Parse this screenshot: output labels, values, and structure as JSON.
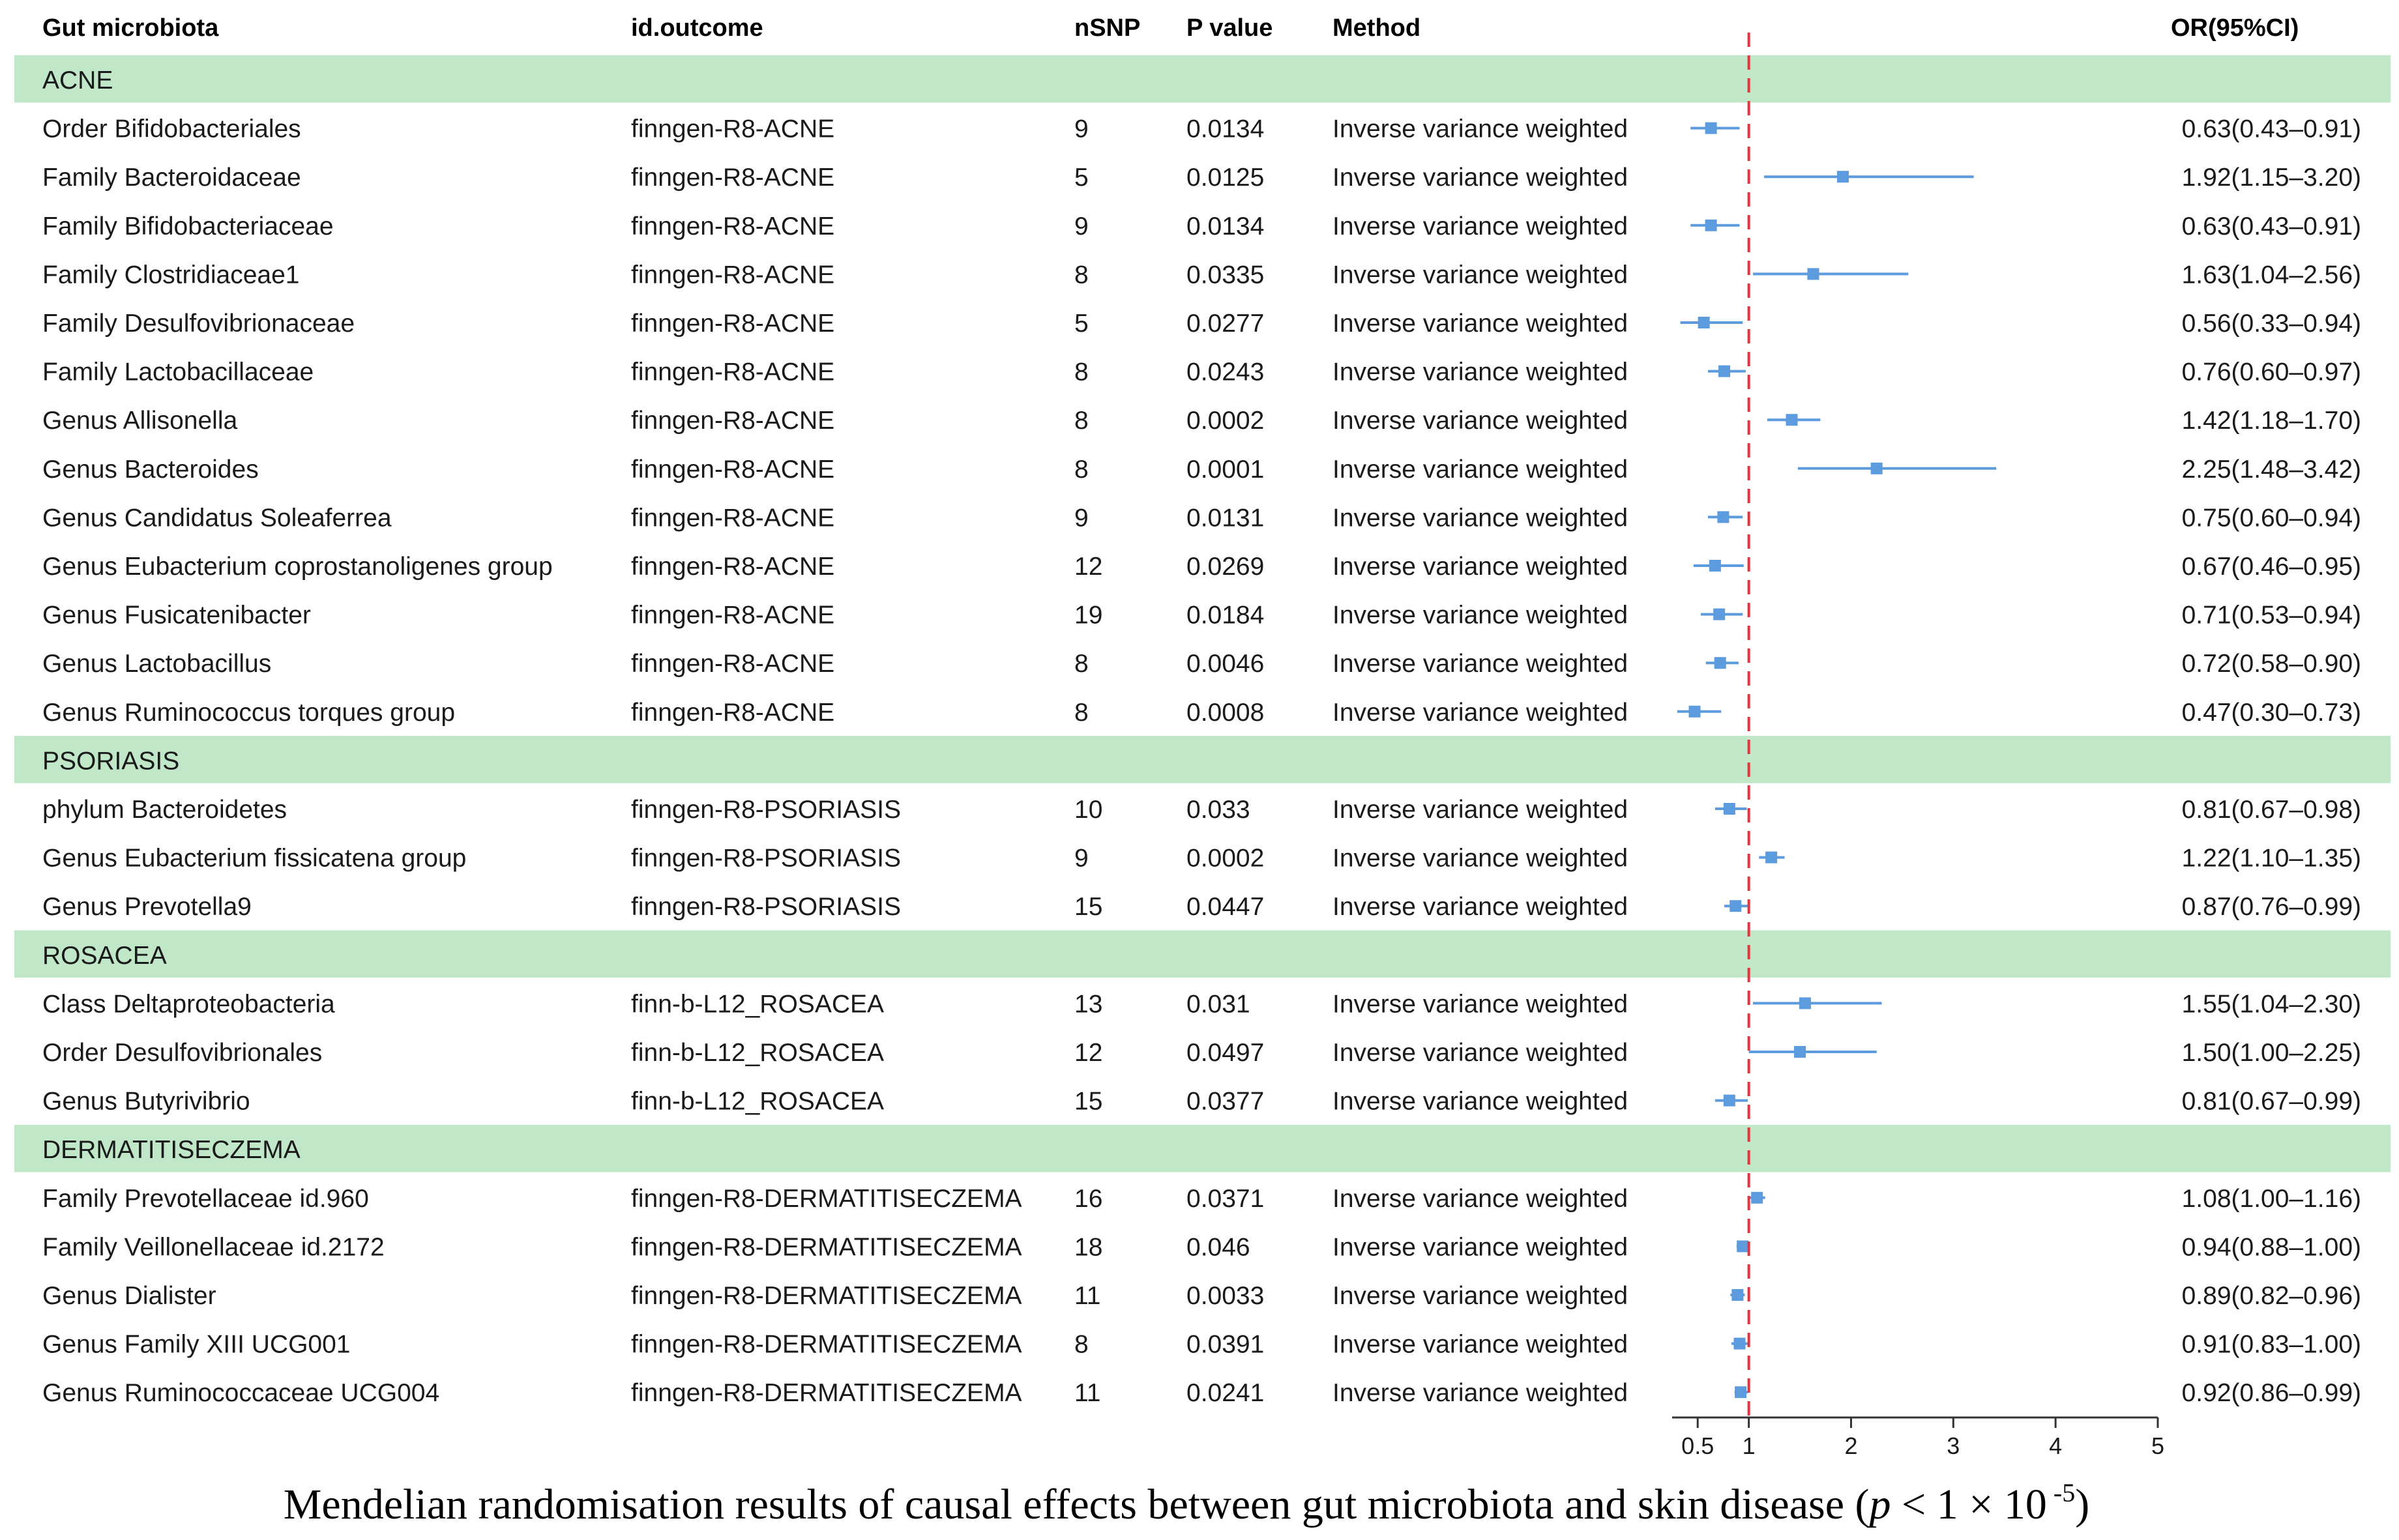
{
  "headers": {
    "gut": "Gut microbiota",
    "outcome": "id.outcome",
    "nsnp": "nSNP",
    "p": "P value",
    "method": "Method",
    "or": "OR(95%CI)"
  },
  "colors": {
    "group_band": "#c0e8c8",
    "point": "#5b9bde",
    "ref_line": "#e8323c"
  },
  "chart_data": {
    "type": "forest",
    "reference_value": 1,
    "axis_ticks": [
      0.5,
      1,
      2,
      3,
      4,
      5
    ],
    "axis_range": [
      0.25,
      5
    ],
    "groups": [
      {
        "name": "ACNE",
        "rows": [
          {
            "gut": "Order Bifidobacteriales",
            "outcome": "finngen-R8-ACNE",
            "nsnp": "9",
            "p": "0.0134",
            "method": "Inverse variance weighted",
            "or": 0.63,
            "lo": 0.43,
            "hi": 0.91,
            "or_text": "0.63(0.43–0.91)"
          },
          {
            "gut": "Family Bacteroidaceae",
            "outcome": "finngen-R8-ACNE",
            "nsnp": "5",
            "p": "0.0125",
            "method": "Inverse variance weighted",
            "or": 1.92,
            "lo": 1.15,
            "hi": 3.2,
            "or_text": "1.92(1.15–3.20)"
          },
          {
            "gut": "Family Bifidobacteriaceae",
            "outcome": "finngen-R8-ACNE",
            "nsnp": "9",
            "p": "0.0134",
            "method": "Inverse variance weighted",
            "or": 0.63,
            "lo": 0.43,
            "hi": 0.91,
            "or_text": "0.63(0.43–0.91)"
          },
          {
            "gut": "Family Clostridiaceae1",
            "outcome": "finngen-R8-ACNE",
            "nsnp": "8",
            "p": "0.0335",
            "method": "Inverse variance weighted",
            "or": 1.63,
            "lo": 1.04,
            "hi": 2.56,
            "or_text": "1.63(1.04–2.56)"
          },
          {
            "gut": "Family Desulfovibrionaceae",
            "outcome": "finngen-R8-ACNE",
            "nsnp": "5",
            "p": "0.0277",
            "method": "Inverse variance weighted",
            "or": 0.56,
            "lo": 0.33,
            "hi": 0.94,
            "or_text": "0.56(0.33–0.94)"
          },
          {
            "gut": "Family Lactobacillaceae",
            "outcome": "finngen-R8-ACNE",
            "nsnp": "8",
            "p": "0.0243",
            "method": "Inverse variance weighted",
            "or": 0.76,
            "lo": 0.6,
            "hi": 0.97,
            "or_text": "0.76(0.60–0.97)"
          },
          {
            "gut": "Genus Allisonella",
            "outcome": "finngen-R8-ACNE",
            "nsnp": "8",
            "p": "0.0002",
            "method": "Inverse variance weighted",
            "or": 1.42,
            "lo": 1.18,
            "hi": 1.7,
            "or_text": "1.42(1.18–1.70)"
          },
          {
            "gut": "Genus Bacteroides",
            "outcome": "finngen-R8-ACNE",
            "nsnp": "8",
            "p": "0.0001",
            "method": "Inverse variance weighted",
            "or": 2.25,
            "lo": 1.48,
            "hi": 3.42,
            "or_text": "2.25(1.48–3.42)"
          },
          {
            "gut": "Genus Candidatus Soleaferrea",
            "outcome": "finngen-R8-ACNE",
            "nsnp": "9",
            "p": "0.0131",
            "method": "Inverse variance weighted",
            "or": 0.75,
            "lo": 0.6,
            "hi": 0.94,
            "or_text": "0.75(0.60–0.94)"
          },
          {
            "gut": "Genus Eubacterium coprostanoligenes group",
            "outcome": "finngen-R8-ACNE",
            "nsnp": "12",
            "p": "0.0269",
            "method": "Inverse variance weighted",
            "or": 0.67,
            "lo": 0.46,
            "hi": 0.95,
            "or_text": "0.67(0.46–0.95)"
          },
          {
            "gut": "Genus Fusicatenibacter",
            "outcome": "finngen-R8-ACNE",
            "nsnp": "19",
            "p": "0.0184",
            "method": "Inverse variance weighted",
            "or": 0.71,
            "lo": 0.53,
            "hi": 0.94,
            "or_text": "0.71(0.53–0.94)"
          },
          {
            "gut": "Genus Lactobacillus",
            "outcome": "finngen-R8-ACNE",
            "nsnp": "8",
            "p": "0.0046",
            "method": "Inverse variance weighted",
            "or": 0.72,
            "lo": 0.58,
            "hi": 0.9,
            "or_text": "0.72(0.58–0.90)"
          },
          {
            "gut": "Genus Ruminococcus torques group",
            "outcome": "finngen-R8-ACNE",
            "nsnp": "8",
            "p": "0.0008",
            "method": "Inverse variance weighted",
            "or": 0.47,
            "lo": 0.3,
            "hi": 0.73,
            "or_text": "0.47(0.30–0.73)"
          }
        ]
      },
      {
        "name": "PSORIASIS",
        "rows": [
          {
            "gut": "phylum Bacteroidetes",
            "outcome": "finngen-R8-PSORIASIS",
            "nsnp": "10",
            "p": "0.033",
            "method": "Inverse variance weighted",
            "or": 0.81,
            "lo": 0.67,
            "hi": 0.98,
            "or_text": "0.81(0.67–0.98)"
          },
          {
            "gut": "Genus Eubacterium fissicatena group",
            "outcome": "finngen-R8-PSORIASIS",
            "nsnp": "9",
            "p": "0.0002",
            "method": "Inverse variance weighted",
            "or": 1.22,
            "lo": 1.1,
            "hi": 1.35,
            "or_text": "1.22(1.10–1.35)"
          },
          {
            "gut": "Genus Prevotella9",
            "outcome": "finngen-R8-PSORIASIS",
            "nsnp": "15",
            "p": "0.0447",
            "method": "Inverse variance weighted",
            "or": 0.87,
            "lo": 0.76,
            "hi": 0.99,
            "or_text": "0.87(0.76–0.99)"
          }
        ]
      },
      {
        "name": "ROSACEA",
        "rows": [
          {
            "gut": "Class Deltaproteobacteria",
            "outcome": "finn-b-L12_ROSACEA",
            "nsnp": "13",
            "p": "0.031",
            "method": "Inverse variance weighted",
            "or": 1.55,
            "lo": 1.04,
            "hi": 2.3,
            "or_text": "1.55(1.04–2.30)"
          },
          {
            "gut": "Order Desulfovibrionales",
            "outcome": "finn-b-L12_ROSACEA",
            "nsnp": "12",
            "p": "0.0497",
            "method": "Inverse variance weighted",
            "or": 1.5,
            "lo": 1.0,
            "hi": 2.25,
            "or_text": "1.50(1.00–2.25)"
          },
          {
            "gut": "Genus Butyrivibrio",
            "outcome": "finn-b-L12_ROSACEA",
            "nsnp": "15",
            "p": "0.0377",
            "method": "Inverse variance weighted",
            "or": 0.81,
            "lo": 0.67,
            "hi": 0.99,
            "or_text": "0.81(0.67–0.99)"
          }
        ]
      },
      {
        "name": "DERMATITISECZEMA",
        "rows": [
          {
            "gut": "Family Prevotellaceae id.960",
            "outcome": "finngen-R8-DERMATITISECZEMA",
            "nsnp": "16",
            "p": "0.0371",
            "method": "Inverse variance weighted",
            "or": 1.08,
            "lo": 1.0,
            "hi": 1.16,
            "or_text": "1.08(1.00–1.16)"
          },
          {
            "gut": "Family Veillonellaceae id.2172",
            "outcome": "finngen-R8-DERMATITISECZEMA",
            "nsnp": "18",
            "p": "0.046",
            "method": "Inverse variance weighted",
            "or": 0.94,
            "lo": 0.88,
            "hi": 1.0,
            "or_text": "0.94(0.88–1.00)"
          },
          {
            "gut": "Genus Dialister",
            "outcome": "finngen-R8-DERMATITISECZEMA",
            "nsnp": "11",
            "p": "0.0033",
            "method": "Inverse variance weighted",
            "or": 0.89,
            "lo": 0.82,
            "hi": 0.96,
            "or_text": "0.89(0.82–0.96)"
          },
          {
            "gut": "Genus Family XIII UCG001",
            "outcome": "finngen-R8-DERMATITISECZEMA",
            "nsnp": "8",
            "p": "0.0391",
            "method": "Inverse variance weighted",
            "or": 0.91,
            "lo": 0.83,
            "hi": 1.0,
            "or_text": "0.91(0.83–1.00)"
          },
          {
            "gut": "Genus Ruminococcaceae UCG004",
            "outcome": "finngen-R8-DERMATITISECZEMA",
            "nsnp": "11",
            "p": "0.0241",
            "method": "Inverse variance weighted",
            "or": 0.92,
            "lo": 0.86,
            "hi": 0.99,
            "or_text": "0.92(0.86–0.99)"
          }
        ]
      }
    ]
  },
  "caption": {
    "main": "Mendelian randomisation results of causal effects between gut microbiota and skin disease (",
    "p_symbol": "p",
    "condition": " < 1 × 10",
    "exponent": " -5",
    "close": ")"
  }
}
